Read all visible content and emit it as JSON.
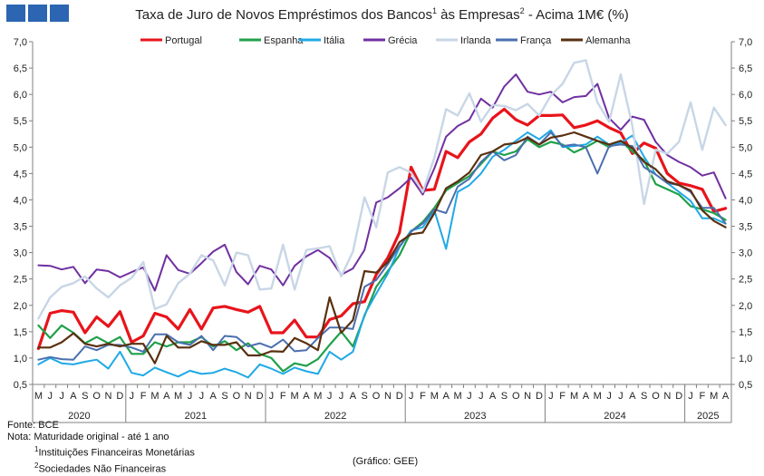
{
  "header": {
    "title_main": "Taxa de Juro de Novos Empréstimos  dos Bancos",
    "sup1": "1",
    "title_mid": " às Empresas",
    "sup2": "2",
    "title_end": " - Acima 1M€ (%)"
  },
  "footer": {
    "source": "Fonte: BCE",
    "note": "Nota: Maturidade original - até 1 ano",
    "fn1_num": "1",
    "fn1": "Instituições Financeiras Monetárias",
    "fn2_num": "2",
    "fn2": "Sociedades Não Financeiras",
    "credit": "(Gráfico: GEE)"
  },
  "chart_data": {
    "type": "line",
    "title": "Taxa de Juro de Novos Empréstimos dos Bancos¹ às Empresas² - Acima 1M€ (%)",
    "ylim": [
      0.5,
      7.0
    ],
    "yticks": [
      "0,5",
      "1,0",
      "1,5",
      "2,0",
      "2,5",
      "3,0",
      "3,5",
      "4,0",
      "4,5",
      "5,0",
      "5,5",
      "6,0",
      "6,5",
      "7,0"
    ],
    "ytick_values": [
      0.5,
      1.0,
      1.5,
      2.0,
      2.5,
      3.0,
      3.5,
      4.0,
      4.5,
      5.0,
      5.5,
      6.0,
      6.5,
      7.0
    ],
    "months": [
      "M",
      "J",
      "J",
      "A",
      "S",
      "O",
      "N",
      "D",
      "J",
      "F",
      "M",
      "A",
      "M",
      "J",
      "J",
      "A",
      "S",
      "O",
      "N",
      "D",
      "J",
      "F",
      "M",
      "A",
      "M",
      "J",
      "J",
      "A",
      "S",
      "O",
      "N",
      "D",
      "J",
      "F",
      "M",
      "A",
      "M",
      "J",
      "J",
      "A",
      "S",
      "O",
      "N",
      "D",
      "J",
      "F",
      "M",
      "A",
      "M",
      "J",
      "J",
      "A",
      "S",
      "O",
      "N",
      "D",
      "J",
      "F",
      "M",
      "A"
    ],
    "years": [
      {
        "label": "2020",
        "start": 0,
        "count": 8
      },
      {
        "label": "2021",
        "start": 8,
        "count": 12
      },
      {
        "label": "2022",
        "start": 20,
        "count": 12
      },
      {
        "label": "2023",
        "start": 32,
        "count": 12
      },
      {
        "label": "2024",
        "start": 44,
        "count": 12
      },
      {
        "label": "2025",
        "start": 56,
        "count": 4
      }
    ],
    "legend_position": "top",
    "grid": false,
    "series": [
      {
        "name": "Portugal",
        "color": "#e8141b",
        "width": 3.2,
        "values": [
          1.18,
          1.85,
          1.9,
          1.87,
          1.48,
          1.78,
          1.6,
          1.88,
          1.3,
          1.42,
          1.85,
          1.78,
          1.55,
          1.92,
          1.55,
          1.95,
          1.98,
          1.92,
          1.87,
          1.98,
          1.48,
          1.48,
          1.72,
          1.4,
          1.4,
          1.73,
          1.8,
          2.03,
          2.07,
          2.58,
          2.9,
          3.38,
          4.62,
          4.18,
          4.2,
          4.92,
          4.8,
          5.1,
          5.25,
          5.55,
          5.72,
          5.52,
          5.42,
          5.6,
          5.6,
          5.61,
          5.37,
          5.42,
          5.5,
          5.37,
          5.27,
          4.88,
          5.08,
          4.98,
          4.5,
          4.32,
          4.27,
          4.2,
          3.78,
          3.84
        ]
      },
      {
        "name": "Espanha",
        "color": "#1fa049",
        "width": 2.2,
        "values": [
          1.62,
          1.38,
          1.62,
          1.48,
          1.28,
          1.4,
          1.28,
          1.4,
          1.08,
          1.08,
          1.3,
          1.22,
          1.3,
          1.3,
          1.4,
          1.22,
          1.32,
          1.15,
          1.28,
          1.08,
          1.0,
          0.75,
          0.9,
          0.85,
          0.98,
          1.25,
          1.5,
          1.22,
          1.8,
          2.35,
          2.65,
          2.95,
          3.4,
          3.58,
          3.85,
          4.18,
          4.32,
          4.45,
          4.68,
          4.92,
          4.85,
          4.92,
          5.15,
          5.0,
          5.1,
          5.05,
          4.9,
          5.0,
          5.12,
          5.0,
          5.12,
          4.92,
          4.75,
          4.3,
          4.2,
          4.1,
          3.88,
          3.82,
          3.75,
          3.62
        ]
      },
      {
        "name": "Itália",
        "color": "#1fa9e6",
        "width": 2.0,
        "values": [
          0.88,
          1.0,
          0.9,
          0.88,
          0.93,
          0.97,
          0.8,
          1.12,
          0.72,
          0.67,
          0.82,
          0.73,
          0.65,
          0.76,
          0.7,
          0.72,
          0.8,
          0.73,
          0.63,
          0.88,
          0.8,
          0.7,
          0.82,
          0.75,
          0.7,
          1.12,
          0.97,
          1.12,
          1.82,
          2.22,
          2.6,
          3.1,
          3.42,
          3.48,
          3.8,
          3.07,
          4.15,
          4.28,
          4.5,
          4.82,
          4.95,
          5.12,
          5.28,
          5.15,
          5.32,
          5.0,
          5.02,
          5.05,
          5.2,
          5.05,
          5.08,
          5.22,
          4.82,
          4.48,
          4.32,
          4.15,
          3.98,
          3.65,
          3.65,
          3.55
        ]
      },
      {
        "name": "Grécia",
        "color": "#7030a0",
        "width": 2.0,
        "values": [
          2.76,
          2.75,
          2.68,
          2.73,
          2.42,
          2.68,
          2.65,
          2.53,
          2.63,
          2.72,
          2.28,
          2.95,
          2.67,
          2.6,
          2.8,
          3.02,
          3.15,
          2.63,
          2.4,
          2.75,
          2.68,
          2.38,
          2.75,
          2.93,
          3.05,
          2.9,
          2.58,
          2.7,
          3.05,
          3.95,
          4.05,
          4.22,
          4.42,
          4.1,
          4.6,
          5.2,
          5.4,
          5.52,
          5.92,
          5.75,
          6.15,
          6.38,
          6.05,
          6.0,
          6.05,
          5.85,
          5.95,
          5.97,
          6.2,
          5.55,
          5.33,
          5.58,
          5.52,
          5.1,
          4.85,
          4.72,
          4.62,
          4.46,
          4.52,
          4.03
        ]
      },
      {
        "name": "Irlanda",
        "color": "#c8d6e6",
        "width": 2.4,
        "values": [
          1.75,
          2.15,
          2.35,
          2.42,
          2.55,
          2.32,
          2.15,
          2.38,
          2.52,
          2.82,
          1.93,
          2.02,
          2.42,
          2.6,
          2.95,
          2.85,
          2.38,
          3.0,
          2.95,
          2.3,
          2.32,
          3.15,
          2.3,
          3.05,
          3.08,
          3.12,
          2.55,
          3.02,
          4.05,
          3.48,
          4.52,
          4.62,
          4.52,
          4.15,
          4.8,
          5.72,
          5.6,
          6.02,
          5.48,
          5.8,
          5.78,
          5.7,
          5.82,
          5.6,
          5.98,
          6.2,
          6.6,
          6.65,
          5.85,
          5.48,
          6.38,
          5.4,
          3.92,
          4.95,
          4.88,
          5.1,
          5.85,
          4.95,
          5.75,
          5.42
        ]
      },
      {
        "name": "França",
        "color": "#4a6faf",
        "width": 2.0,
        "values": [
          0.97,
          1.02,
          0.98,
          0.97,
          1.22,
          1.15,
          1.25,
          1.25,
          1.2,
          1.12,
          1.45,
          1.45,
          1.3,
          1.25,
          1.42,
          1.15,
          1.42,
          1.4,
          1.22,
          1.28,
          1.2,
          1.35,
          1.13,
          1.15,
          1.38,
          1.58,
          1.58,
          1.55,
          2.35,
          2.48,
          2.78,
          3.12,
          3.4,
          3.55,
          3.82,
          3.75,
          4.25,
          4.4,
          4.72,
          4.92,
          4.75,
          4.85,
          5.2,
          5.05,
          5.28,
          5.02,
          5.05,
          5.0,
          4.5,
          5.02,
          5.05,
          5.02,
          4.62,
          4.48,
          4.32,
          4.28,
          4.15,
          3.85,
          3.85,
          3.55
        ]
      },
      {
        "name": "Alemanha",
        "color": "#5a3010",
        "width": 2.2,
        "values": [
          1.2,
          1.2,
          1.3,
          1.47,
          1.27,
          1.22,
          1.27,
          1.22,
          1.27,
          1.27,
          0.9,
          1.42,
          1.2,
          1.2,
          1.32,
          1.25,
          1.25,
          1.3,
          1.05,
          1.05,
          1.13,
          1.12,
          1.38,
          1.28,
          1.15,
          2.15,
          1.48,
          1.72,
          2.65,
          2.62,
          2.82,
          3.2,
          3.35,
          3.38,
          3.75,
          4.22,
          4.35,
          4.52,
          4.85,
          4.92,
          5.05,
          5.08,
          5.18,
          5.05,
          5.18,
          5.22,
          5.28,
          5.2,
          5.12,
          5.05,
          5.12,
          4.98,
          4.72,
          4.58,
          4.35,
          4.28,
          4.18,
          3.8,
          3.6,
          3.48
        ]
      }
    ]
  }
}
